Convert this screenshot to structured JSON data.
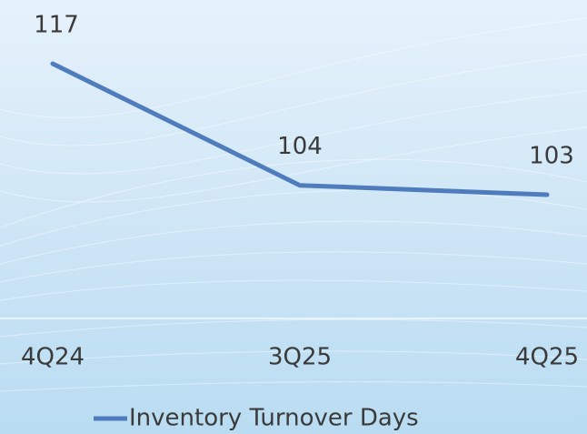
{
  "chart_data": {
    "type": "line",
    "categories": [
      "4Q24",
      "3Q25",
      "4Q25"
    ],
    "series": [
      {
        "name": "Inventory Turnover Days",
        "color": "#4f7cbd",
        "values": [
          117,
          104,
          103
        ]
      }
    ],
    "legend": "bottom"
  }
}
